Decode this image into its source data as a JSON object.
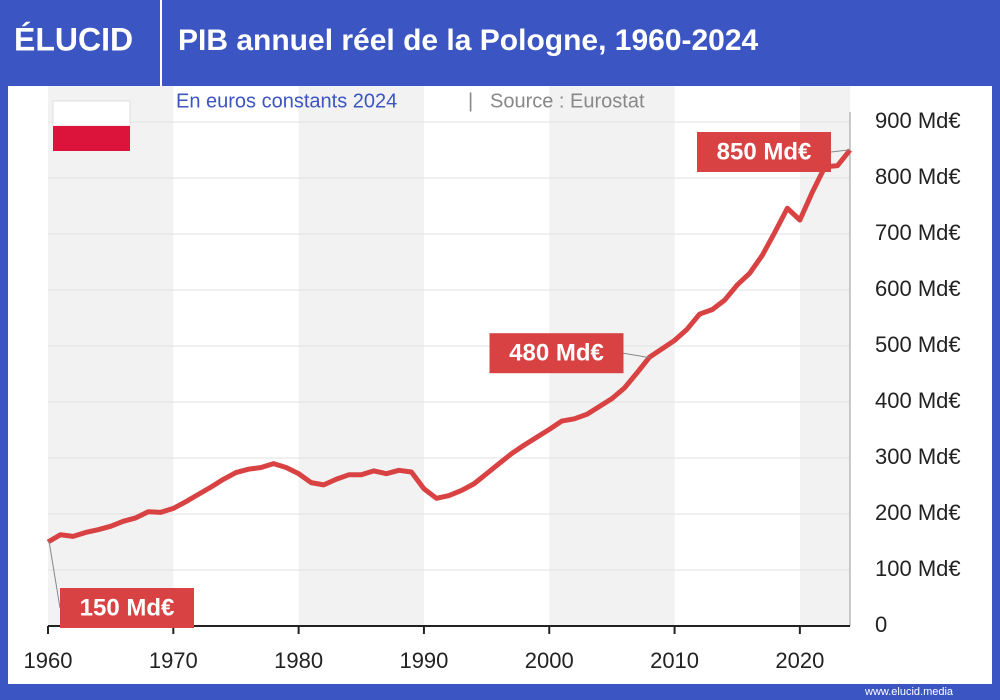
{
  "logo": "ÉLUCID",
  "footer": "www.elucid.media",
  "chart_data": {
    "type": "line",
    "title": "PIB annuel réel de la Pologne, 1960-2024",
    "subtitle": "En euros constants 2024",
    "separator": "|",
    "source": "Source : Eurostat",
    "x": [
      1960,
      1961,
      1962,
      1963,
      1964,
      1965,
      1966,
      1967,
      1968,
      1969,
      1970,
      1971,
      1972,
      1973,
      1974,
      1975,
      1976,
      1977,
      1978,
      1979,
      1980,
      1981,
      1982,
      1983,
      1984,
      1985,
      1986,
      1987,
      1988,
      1989,
      1990,
      1991,
      1992,
      1993,
      1994,
      1995,
      1996,
      1997,
      1998,
      1999,
      2000,
      2001,
      2002,
      2003,
      2004,
      2005,
      2006,
      2007,
      2008,
      2009,
      2010,
      2011,
      2012,
      2013,
      2014,
      2015,
      2016,
      2017,
      2018,
      2019,
      2020,
      2021,
      2022,
      2023,
      2024
    ],
    "series": [
      {
        "name": "PIB réel",
        "color": "#d94242",
        "values": [
          150,
          163,
          160,
          167,
          172,
          178,
          187,
          193,
          204,
          203,
          210,
          222,
          235,
          248,
          262,
          274,
          280,
          283,
          290,
          283,
          272,
          256,
          252,
          262,
          270,
          270,
          277,
          272,
          278,
          275,
          245,
          228,
          233,
          242,
          254,
          272,
          290,
          308,
          323,
          337,
          351,
          366,
          370,
          378,
          392,
          406,
          425,
          452,
          480,
          495,
          510,
          530,
          557,
          565,
          582,
          609,
          630,
          662,
          703,
          746,
          725,
          775,
          820,
          822,
          850
        ],
        "value_labels": [
          "150 Md€",
          null,
          null,
          null,
          null,
          null,
          null,
          null,
          null,
          null,
          null,
          null,
          null,
          null,
          null,
          null,
          null,
          null,
          null,
          null,
          null,
          null,
          null,
          null,
          null,
          null,
          null,
          null,
          null,
          null,
          null,
          null,
          null,
          null,
          null,
          null,
          null,
          null,
          null,
          null,
          null,
          null,
          null,
          null,
          null,
          null,
          null,
          null,
          "480 Md€",
          null,
          null,
          null,
          null,
          null,
          null,
          null,
          null,
          null,
          null,
          null,
          null,
          null,
          null,
          null,
          "850 Md€"
        ]
      }
    ],
    "xlim": [
      1960,
      2024
    ],
    "xticks": [
      1960,
      1970,
      1980,
      1990,
      2000,
      2010,
      2020
    ],
    "ylim": [
      0,
      900
    ],
    "yticks": [
      0,
      {
        "value": 100,
        "label": "100 Md€"
      },
      {
        "value": 200,
        "label": "200 Md€"
      },
      {
        "value": 300,
        "label": "300 Md€"
      },
      {
        "value": 400,
        "label": "400 Md€"
      },
      {
        "value": 500,
        "label": "500 Md€"
      },
      {
        "value": 600,
        "label": "600 Md€"
      },
      {
        "value": 700,
        "label": "700 Md€"
      },
      {
        "value": 800,
        "label": "800 Md€"
      },
      {
        "value": 900,
        "label": "900 Md€"
      }
    ],
    "grid": true
  }
}
